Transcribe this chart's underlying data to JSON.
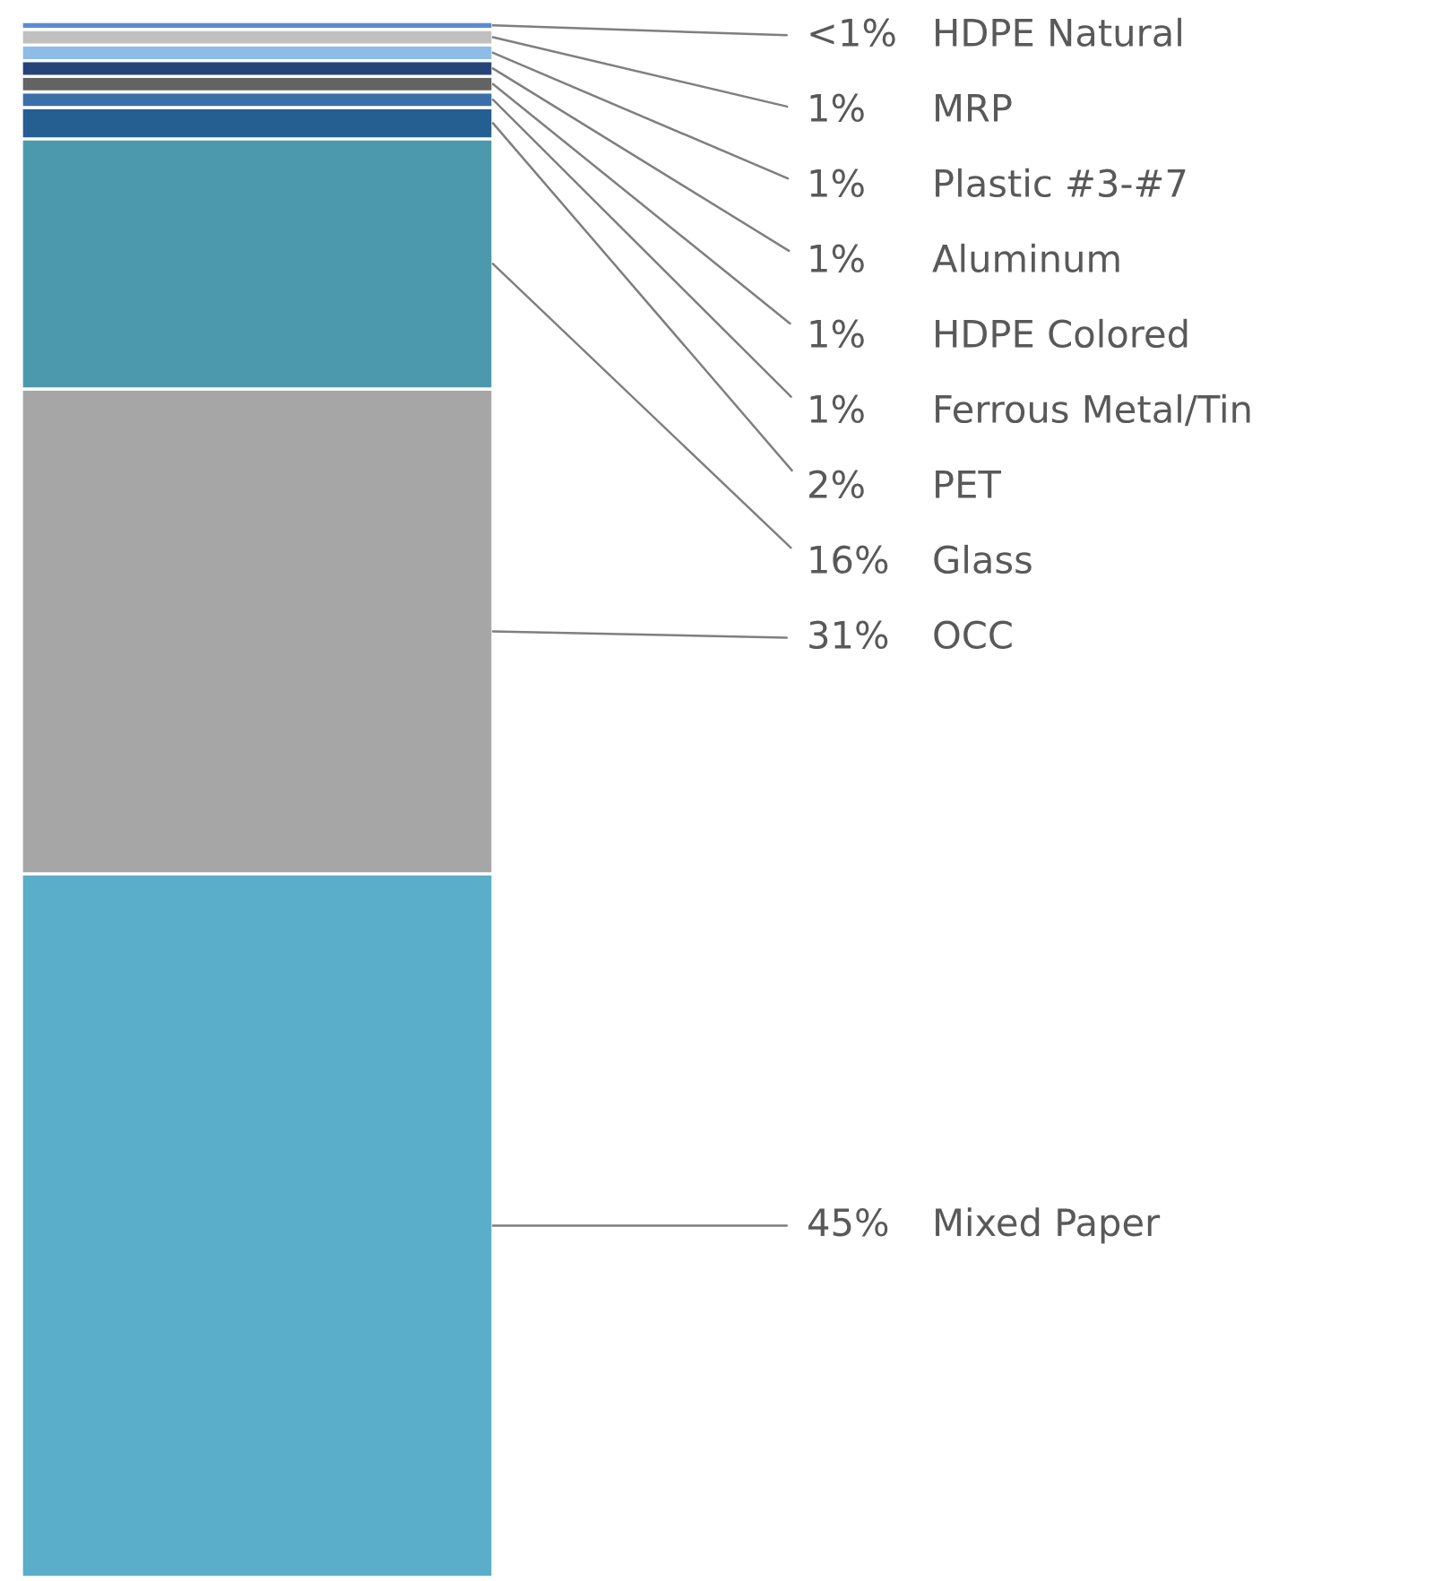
{
  "chart_data": {
    "type": "bar",
    "stacked": true,
    "categories": [
      null
    ],
    "tick_labels": false,
    "legend": false,
    "series": [
      {
        "name": "Mixed Paper",
        "color": "#5aaec9",
        "values": [
          45
        ],
        "value_labels": [
          "45%"
        ]
      },
      {
        "name": "OCC",
        "color": "#a6a6a6",
        "values": [
          31
        ],
        "value_labels": [
          "31%"
        ]
      },
      {
        "name": "Glass",
        "color": "#4c99ae",
        "values": [
          16
        ],
        "value_labels": [
          "16%"
        ]
      },
      {
        "name": "PET",
        "color": "#255e91",
        "values": [
          2
        ],
        "value_labels": [
          "2%"
        ]
      },
      {
        "name": "Ferrous Metal/Tin",
        "color": "#3a6fa8",
        "values": [
          1
        ],
        "value_labels": [
          "1%"
        ]
      },
      {
        "name": "HDPE Colored",
        "color": "#636363",
        "values": [
          1
        ],
        "value_labels": [
          "1%"
        ]
      },
      {
        "name": "Aluminum",
        "color": "#264478",
        "values": [
          1
        ],
        "value_labels": [
          "1%"
        ]
      },
      {
        "name": "Plastic #3-#7",
        "color": "#8fbce6",
        "values": [
          1
        ],
        "value_labels": [
          "1%"
        ]
      },
      {
        "name": "MRP",
        "color": "#c0c0c0",
        "values": [
          1
        ],
        "value_labels": [
          "1%"
        ]
      },
      {
        "name": "HDPE Natural",
        "color": "#5b8bd0",
        "values": [
          0.5
        ],
        "value_labels": [
          "<1%"
        ]
      }
    ]
  }
}
